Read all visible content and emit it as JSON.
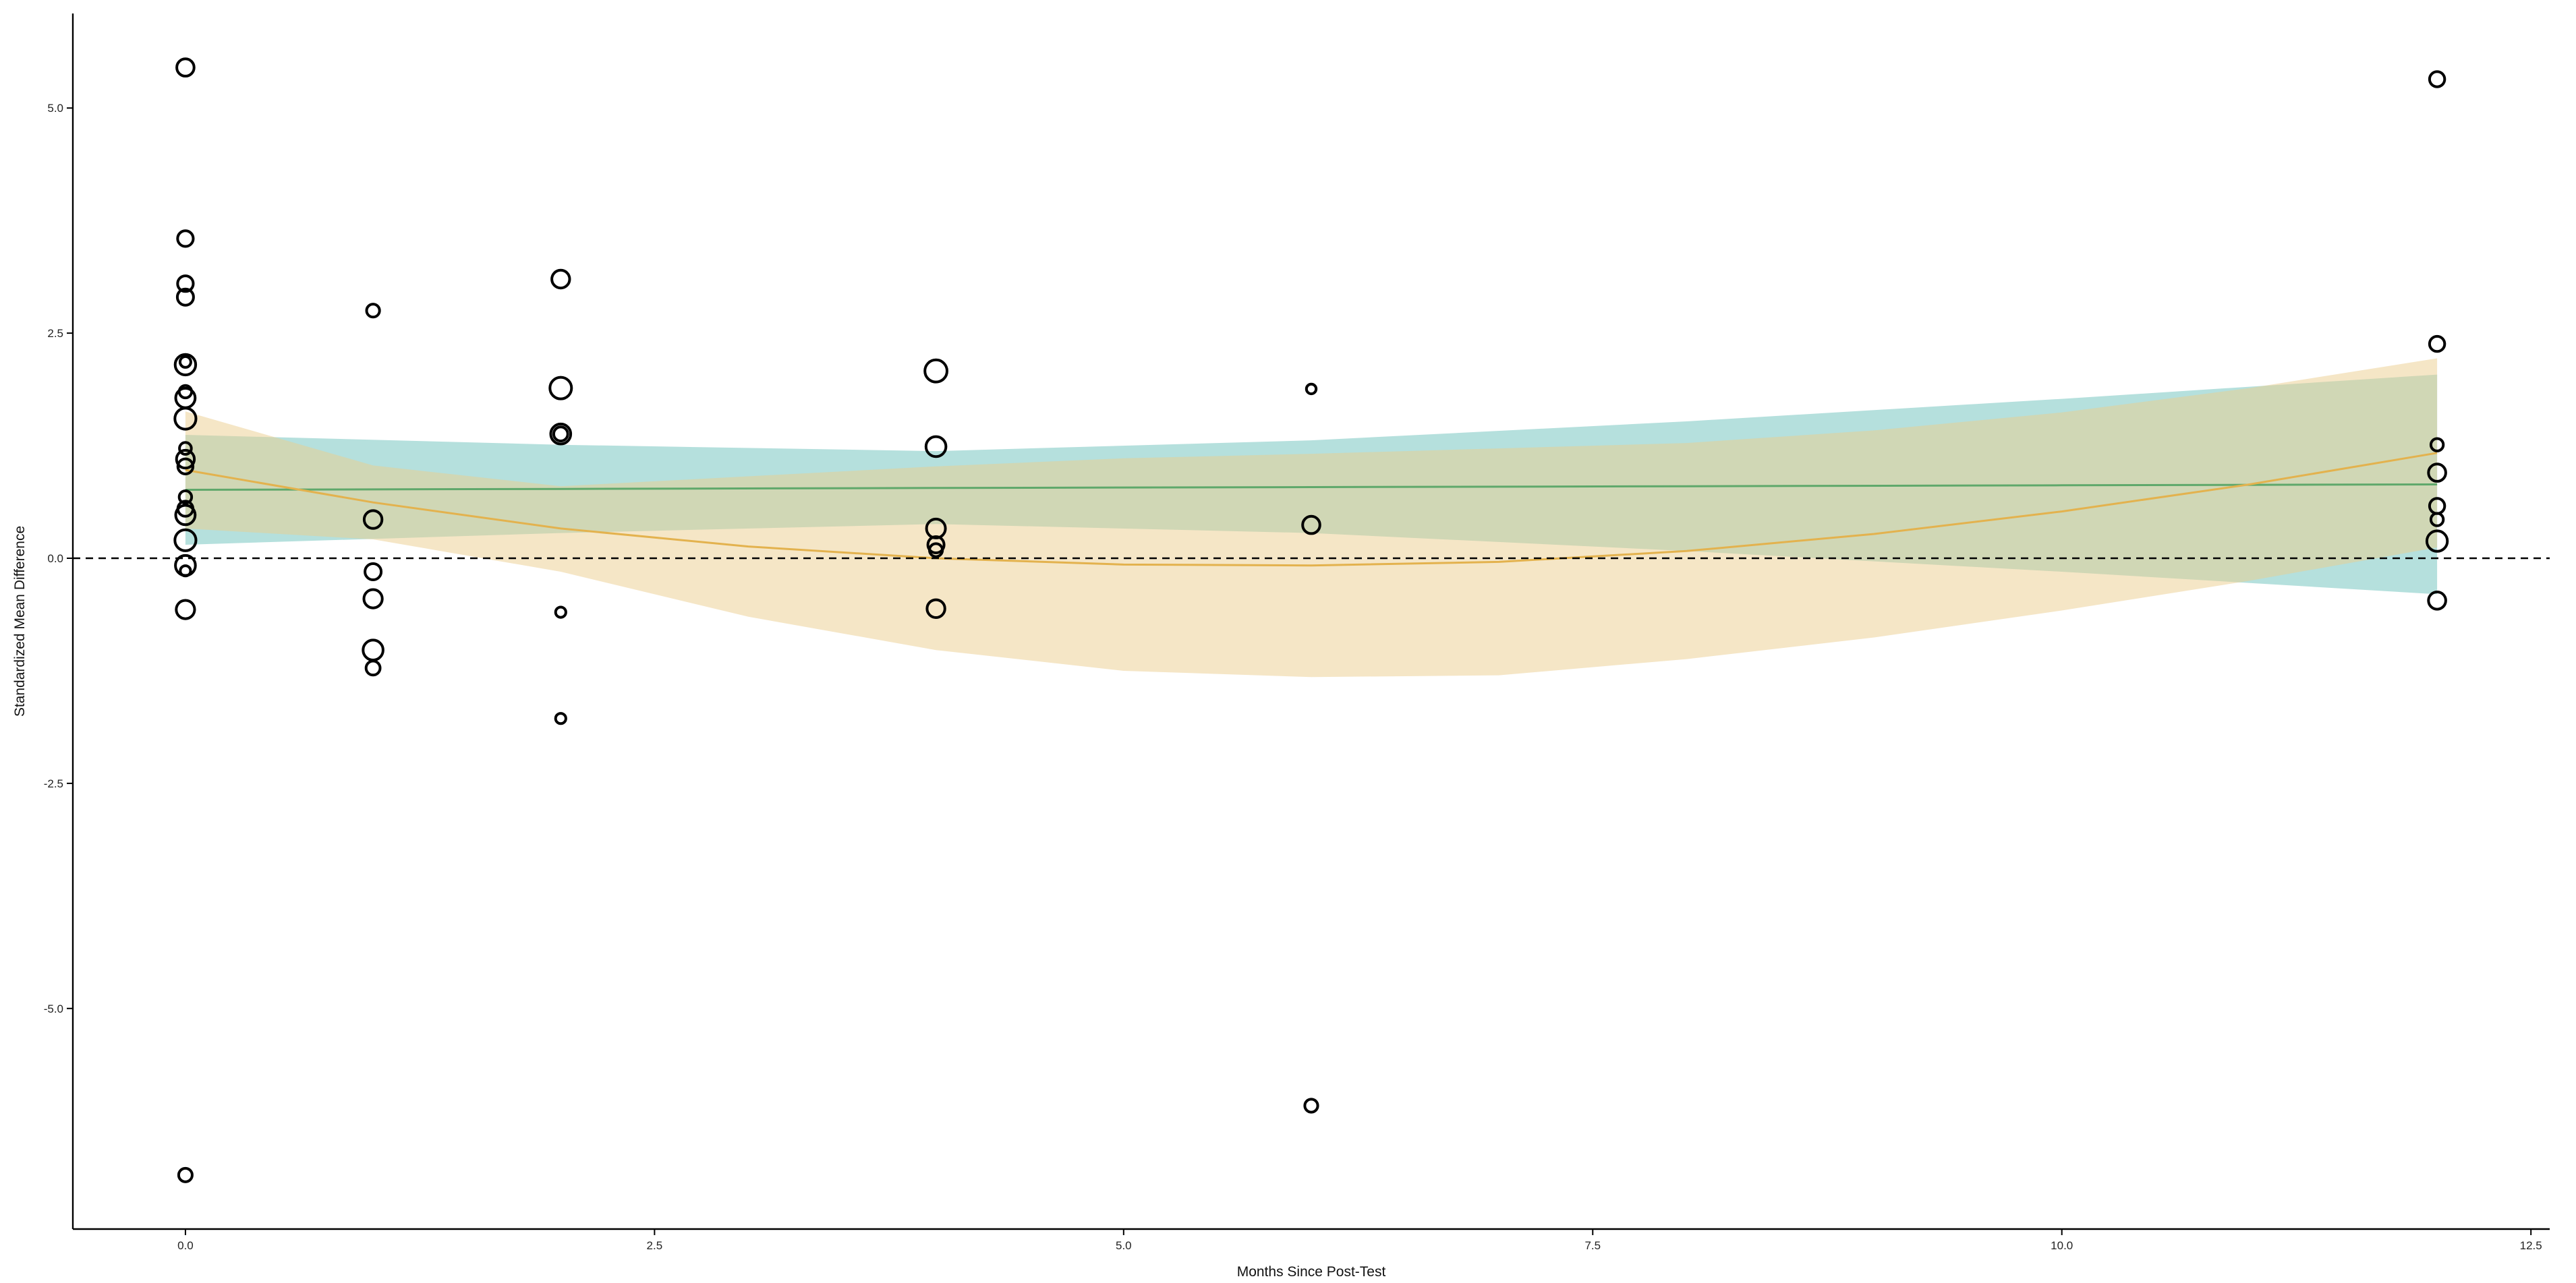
{
  "chart_data": {
    "type": "scatter",
    "title": "",
    "xlabel": "Months Since Post-Test",
    "ylabel": "Standardized Mean Difference",
    "xlim": [
      -0.6,
      12.6
    ],
    "ylim": [
      -7.45,
      6.05
    ],
    "xticks": [
      {
        "value": 0.0,
        "label": "0.0"
      },
      {
        "value": 2.5,
        "label": "2.5"
      },
      {
        "value": 5.0,
        "label": "5.0"
      },
      {
        "value": 7.5,
        "label": "7.5"
      },
      {
        "value": 10.0,
        "label": "10.0"
      },
      {
        "value": 12.5,
        "label": "12.5"
      }
    ],
    "yticks": [
      {
        "value": -5.0,
        "label": "-5.0"
      },
      {
        "value": -2.5,
        "label": "-2.5"
      },
      {
        "value": 0.0,
        "label": "0.0"
      },
      {
        "value": 2.5,
        "label": "2.5"
      },
      {
        "value": 5.0,
        "label": "5.0"
      }
    ],
    "grid": false,
    "legend": false,
    "reference_line": {
      "y": 0.0,
      "style": "dashed"
    },
    "points": [
      {
        "x": 0,
        "y": 5.45,
        "w": 2.2
      },
      {
        "x": 0,
        "y": 3.55,
        "w": 1.9
      },
      {
        "x": 0,
        "y": 3.05,
        "w": 1.9
      },
      {
        "x": 0,
        "y": 2.9,
        "w": 2.0
      },
      {
        "x": 0,
        "y": 2.15,
        "w": 2.8
      },
      {
        "x": 0,
        "y": 2.18,
        "w": 1.0
      },
      {
        "x": 0,
        "y": 1.85,
        "w": 1.3
      },
      {
        "x": 0,
        "y": 1.78,
        "w": 2.6
      },
      {
        "x": 0,
        "y": 1.55,
        "w": 2.9
      },
      {
        "x": 0,
        "y": 1.22,
        "w": 1.2
      },
      {
        "x": 0,
        "y": 1.1,
        "w": 2.3
      },
      {
        "x": 0,
        "y": 1.02,
        "w": 1.8
      },
      {
        "x": 0,
        "y": 0.68,
        "w": 1.3
      },
      {
        "x": 0,
        "y": 0.55,
        "w": 1.8
      },
      {
        "x": 0,
        "y": 0.48,
        "w": 2.6
      },
      {
        "x": 0,
        "y": 0.2,
        "w": 2.9
      },
      {
        "x": 0,
        "y": -0.08,
        "w": 2.7
      },
      {
        "x": 0,
        "y": -0.14,
        "w": 0.9
      },
      {
        "x": 0,
        "y": -0.57,
        "w": 2.4
      },
      {
        "x": 0,
        "y": -6.85,
        "w": 1.5
      },
      {
        "x": 1,
        "y": 2.75,
        "w": 1.4
      },
      {
        "x": 1,
        "y": 0.43,
        "w": 2.3
      },
      {
        "x": 1,
        "y": -0.15,
        "w": 2.0
      },
      {
        "x": 1,
        "y": -0.45,
        "w": 2.4
      },
      {
        "x": 1,
        "y": -1.02,
        "w": 2.7
      },
      {
        "x": 1,
        "y": -1.22,
        "w": 1.6
      },
      {
        "x": 2,
        "y": 3.1,
        "w": 2.3
      },
      {
        "x": 2,
        "y": 1.89,
        "w": 3.0
      },
      {
        "x": 2,
        "y": 1.38,
        "w": 2.7
      },
      {
        "x": 2,
        "y": 1.38,
        "w": 1.6
      },
      {
        "x": 2,
        "y": -0.6,
        "w": 0.9
      },
      {
        "x": 2,
        "y": -1.78,
        "w": 0.9
      },
      {
        "x": 4,
        "y": 2.08,
        "w": 3.1
      },
      {
        "x": 4,
        "y": 1.24,
        "w": 2.7
      },
      {
        "x": 4,
        "y": 0.33,
        "w": 2.5
      },
      {
        "x": 4,
        "y": 0.15,
        "w": 2.0
      },
      {
        "x": 4,
        "y": 0.09,
        "w": 1.4
      },
      {
        "x": 4,
        "y": -0.56,
        "w": 2.3
      },
      {
        "x": 6,
        "y": 1.88,
        "w": 0.8
      },
      {
        "x": 6,
        "y": 0.37,
        "w": 2.2
      },
      {
        "x": 6,
        "y": -6.08,
        "w": 1.4
      },
      {
        "x": 12,
        "y": 5.32,
        "w": 1.8
      },
      {
        "x": 12,
        "y": 2.38,
        "w": 1.8
      },
      {
        "x": 12,
        "y": 1.26,
        "w": 1.3
      },
      {
        "x": 12,
        "y": 0.95,
        "w": 2.2
      },
      {
        "x": 12,
        "y": 0.58,
        "w": 1.8
      },
      {
        "x": 12,
        "y": 0.43,
        "w": 1.3
      },
      {
        "x": 12,
        "y": 0.19,
        "w": 2.8
      },
      {
        "x": 12,
        "y": -0.47,
        "w": 2.2
      }
    ],
    "fits": [
      {
        "kind": "linear",
        "line_color": "#5fa86b",
        "band_color": "#6cc2bc",
        "band_opacity": 0.5,
        "x": [
          0,
          2,
          4,
          6,
          8,
          10,
          12
        ],
        "y": [
          0.76,
          0.77,
          0.78,
          0.79,
          0.8,
          0.81,
          0.82
        ],
        "lower": [
          0.15,
          0.28,
          0.38,
          0.28,
          0.08,
          -0.15,
          -0.4
        ],
        "upper": [
          1.37,
          1.26,
          1.19,
          1.31,
          1.52,
          1.77,
          2.04
        ]
      },
      {
        "kind": "quadratic",
        "line_color": "#e3b24e",
        "band_color": "#ebcd8d",
        "band_opacity": 0.5,
        "x": [
          0,
          1,
          2,
          3,
          4,
          5,
          6,
          7,
          8,
          9,
          10,
          11,
          12
        ],
        "y": [
          0.98,
          0.62,
          0.33,
          0.13,
          0.0,
          -0.07,
          -0.08,
          -0.04,
          0.08,
          0.27,
          0.52,
          0.82,
          1.17
        ],
        "lower": [
          0.33,
          0.21,
          -0.15,
          -0.65,
          -1.02,
          -1.25,
          -1.32,
          -1.3,
          -1.12,
          -0.88,
          -0.58,
          -0.25,
          0.12
        ],
        "upper": [
          1.63,
          1.03,
          0.8,
          0.91,
          1.02,
          1.11,
          1.16,
          1.22,
          1.28,
          1.42,
          1.62,
          1.89,
          2.22
        ]
      }
    ]
  }
}
